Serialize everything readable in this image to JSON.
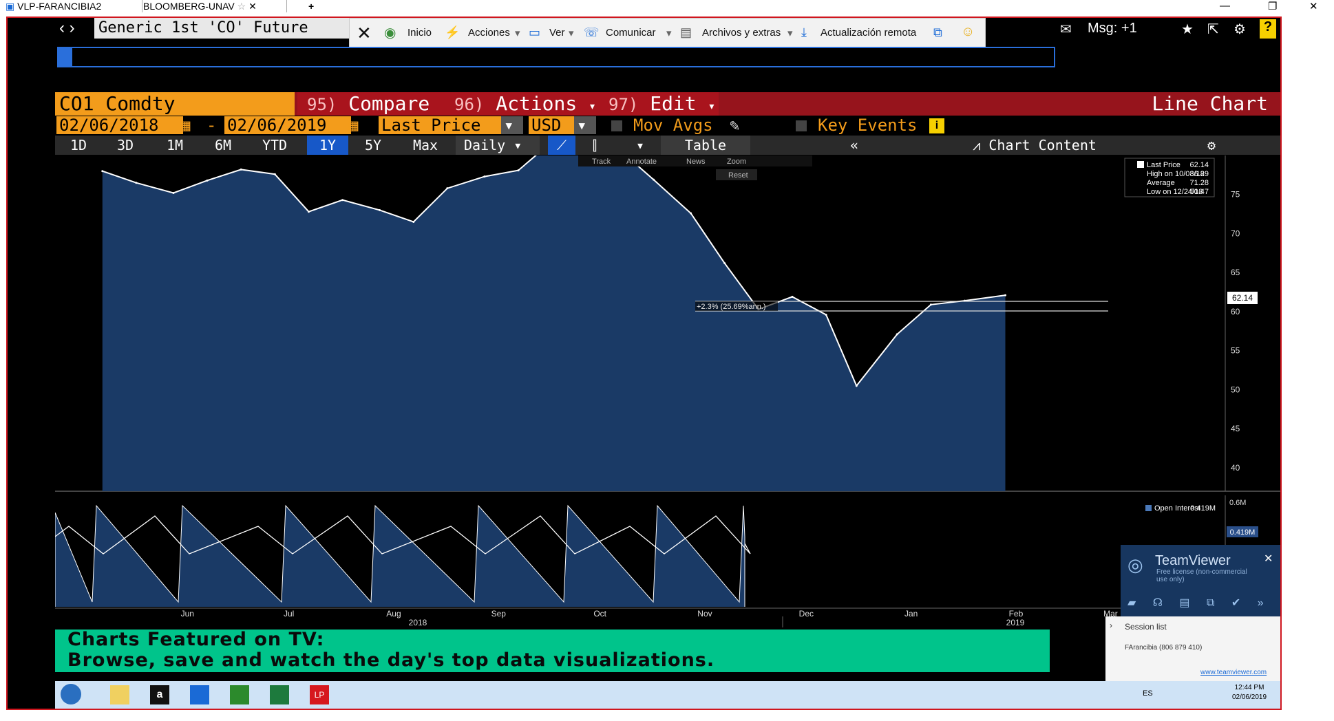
{
  "os": {
    "tabs": [
      "VLP-FARANCIBIA2",
      "BLOOMBERG-UNAV"
    ],
    "add_tab": "+"
  },
  "bbg": {
    "security_field": "Generic 1st 'CO' Future Comdty",
    "msg": "Msg: +1",
    "help": "?"
  },
  "teamviewer_bar": {
    "inicio": "Inicio",
    "acciones": "Acciones",
    "ver": "Ver",
    "comunicar": "Comunicar",
    "archivos": "Archivos y extras",
    "actualizacion": "Actualización remota"
  },
  "header": {
    "ticker": "CO1 Comdty",
    "compare_num": "95)",
    "compare": "Compare",
    "actions_num": "96)",
    "actions": "Actions",
    "edit_num": "97)",
    "edit": "Edit",
    "chart_type": "Line Chart"
  },
  "controls": {
    "start_date": "02/06/2018",
    "end_date": "02/06/2019",
    "field": "Last Price",
    "currency": "USD",
    "mov_avgs": "Mov Avgs",
    "key_events": "Key Events",
    "ranges": [
      "1D",
      "3D",
      "1M",
      "6M",
      "YTD",
      "1Y",
      "5Y",
      "Max"
    ],
    "selected_range": "1Y",
    "periodicity": "Daily",
    "table": "Table",
    "chart_content": "Chart Content",
    "tools": [
      "Track",
      "Annotate",
      "News",
      "Zoom"
    ],
    "reset": "Reset"
  },
  "legend": {
    "last_price_label": "Last Price",
    "last_price": "62.14",
    "high_label": "High on 10/03/18",
    "high": "86.29",
    "average_label": "Average",
    "average": "71.28",
    "low_label": "Low on 12/24/18",
    "low": "50.47",
    "open_interest_label": "Open Interest",
    "open_interest": "0.419M",
    "last_tag": "62.14",
    "oi_tag": "0.419M",
    "annotation": "+2.3% (25.69%ann.)"
  },
  "chart_data": [
    {
      "type": "area",
      "title": "",
      "series": [
        {
          "name": "Last Price",
          "x": [
            "2018-05-15",
            "2018-05-25",
            "2018-06-05",
            "2018-06-15",
            "2018-06-25",
            "2018-07-05",
            "2018-07-15",
            "2018-07-25",
            "2018-08-05",
            "2018-08-15",
            "2018-08-25",
            "2018-09-05",
            "2018-09-15",
            "2018-09-25",
            "2018-10-03",
            "2018-10-15",
            "2018-10-25",
            "2018-11-05",
            "2018-11-15",
            "2018-11-25",
            "2018-12-05",
            "2018-12-15",
            "2018-12-24",
            "2019-01-05",
            "2019-01-15",
            "2019-01-25",
            "2019-02-06"
          ],
          "y": [
            78.0,
            76.5,
            75.2,
            76.8,
            78.2,
            77.6,
            72.8,
            74.3,
            73.0,
            71.5,
            75.8,
            77.3,
            78.1,
            81.8,
            86.3,
            80.7,
            76.9,
            72.6,
            66.2,
            60.3,
            61.9,
            59.6,
            50.5,
            57.1,
            60.9,
            61.4,
            62.1
          ]
        }
      ],
      "ylim": [
        37,
        80
      ],
      "yticks": [
        40,
        45,
        50,
        55,
        60,
        65,
        70,
        75
      ]
    },
    {
      "type": "area",
      "title": "",
      "series": [
        {
          "name": "Open Interest",
          "last": "0.419M"
        }
      ],
      "yticks_label": [
        "0.6M"
      ]
    }
  ],
  "axis": {
    "months": [
      "Jun",
      "Jul",
      "Aug",
      "Sep",
      "Oct",
      "Nov",
      "Dec",
      "Jan",
      "Feb",
      "Mar",
      "Ar"
    ],
    "years": [
      "2018",
      "2019"
    ]
  },
  "banner": {
    "line1": "Charts Featured on TV:",
    "line2": "Browse, save and watch the day's top data visualizations."
  },
  "teamviewer_panel": {
    "title": "TeamViewer",
    "subtitle": "Free license (non-commercial use only)",
    "session_list": "Session list",
    "session": "FArancibia (806 879 410)",
    "url": "www.teamviewer.com"
  },
  "taskbar": {
    "lang": "ES",
    "time": "12:44 PM",
    "date": "02/06/2019"
  },
  "colors": {
    "bloomberg_amber": "#f39c1b",
    "bloomberg_red": "#a9141d",
    "chart_fill": "#1a3a66",
    "line": "#ffffff",
    "banner": "#00c48b"
  }
}
